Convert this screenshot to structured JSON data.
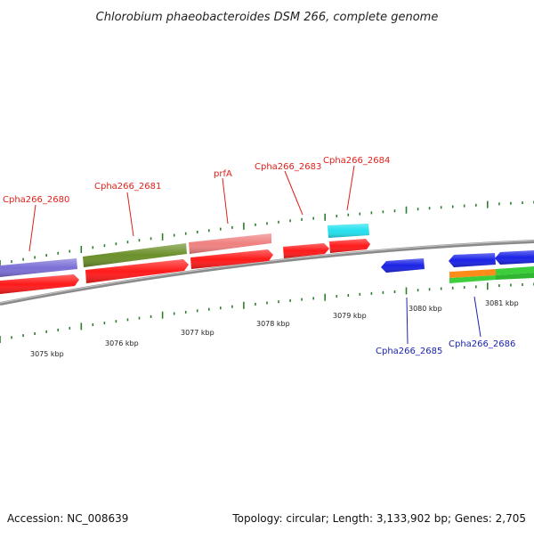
{
  "title": "Chlorobium phaeobacteroides DSM 266, complete genome",
  "footer": {
    "accession": "Accession: NC_008639",
    "summary": "Topology: circular; Length: 3,133,902 bp; Genes: 2,705"
  },
  "ticks": [
    "3075 kbp",
    "3076 kbp",
    "3077 kbp",
    "3078 kbp",
    "3079 kbp",
    "3080 kbp",
    "3081 kbp"
  ],
  "forward_labels": [
    "Cpha266_2680",
    "Cpha266_2681",
    "prfA",
    "Cpha266_2683",
    "Cpha266_2684"
  ],
  "reverse_labels": [
    "Cpha266_2685",
    "Cpha266_2686"
  ],
  "colors": {
    "backbone": "#8a8a8a",
    "tick": "#2e7d2e",
    "cds_red": "#ff1a1a",
    "purple": "#7b6fd6",
    "olive": "#6b8f2a",
    "pink": "#f08080",
    "cyan": "#22e0ee",
    "blue": "#1a22e6",
    "orange": "#ff8c1a",
    "green": "#3ccf3c"
  }
}
